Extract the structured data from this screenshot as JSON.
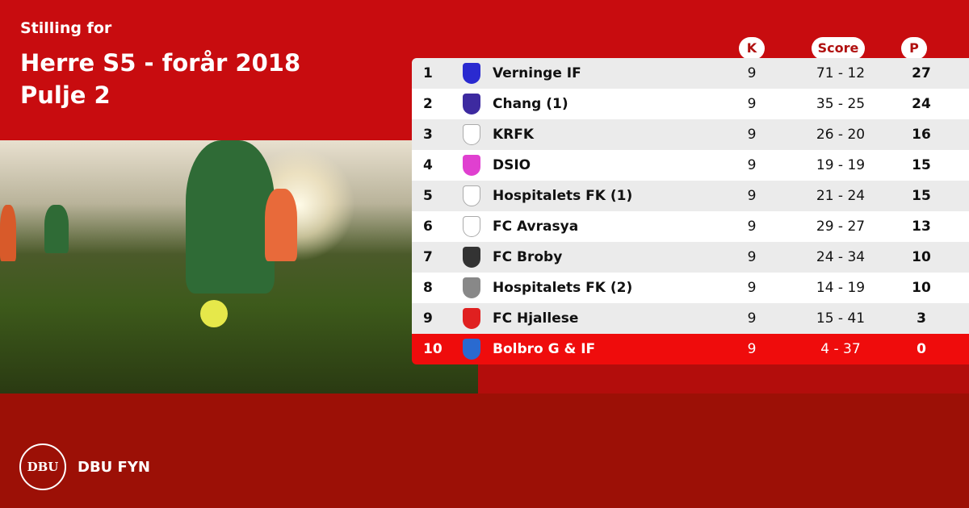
{
  "header": {
    "subtitle": "Stilling for",
    "title_line1": "Herre S5 - forår 2018",
    "title_line2": "Pulje 2"
  },
  "columns": {
    "k": "K",
    "score": "Score",
    "p": "P"
  },
  "colors": {
    "top": "#c80c0f",
    "bottom": "#9c1006",
    "highlight": "#ef0c0c"
  },
  "rows": [
    {
      "pos": "1",
      "name": "Verninge IF",
      "k": "9",
      "score": "71 - 12",
      "p": "27",
      "logo_color": "#2a2ad0"
    },
    {
      "pos": "2",
      "name": "Chang (1)",
      "k": "9",
      "score": "35 - 25",
      "p": "24",
      "logo_color": "#3d2aa0"
    },
    {
      "pos": "3",
      "name": "KRFK",
      "k": "9",
      "score": "26 - 20",
      "p": "16",
      "logo_color": "#bbbbbb"
    },
    {
      "pos": "4",
      "name": "DSIO",
      "k": "9",
      "score": "19 - 19",
      "p": "15",
      "logo_color": "#e040d0"
    },
    {
      "pos": "5",
      "name": "Hospitalets FK (1)",
      "k": "9",
      "score": "21 - 24",
      "p": "15",
      "logo_color": "#bbbbbb"
    },
    {
      "pos": "6",
      "name": "FC Avrasya",
      "k": "9",
      "score": "29 - 27",
      "p": "13",
      "logo_color": "#bbbbbb"
    },
    {
      "pos": "7",
      "name": "FC Broby",
      "k": "9",
      "score": "24 - 34",
      "p": "10",
      "logo_color": "#333333"
    },
    {
      "pos": "8",
      "name": "Hospitalets FK (2)",
      "k": "9",
      "score": "14 - 19",
      "p": "10",
      "logo_color": "#888888"
    },
    {
      "pos": "9",
      "name": "FC Hjallese",
      "k": "9",
      "score": "15 - 41",
      "p": "3",
      "logo_color": "#e02020"
    },
    {
      "pos": "10",
      "name": "Bolbro G & IF",
      "k": "9",
      "score": "4 - 37",
      "p": "0",
      "logo_color": "#2a6ad0",
      "highlighted": true
    }
  ],
  "footer": {
    "brand": "DBU FYN",
    "seal_text": "DBU"
  }
}
